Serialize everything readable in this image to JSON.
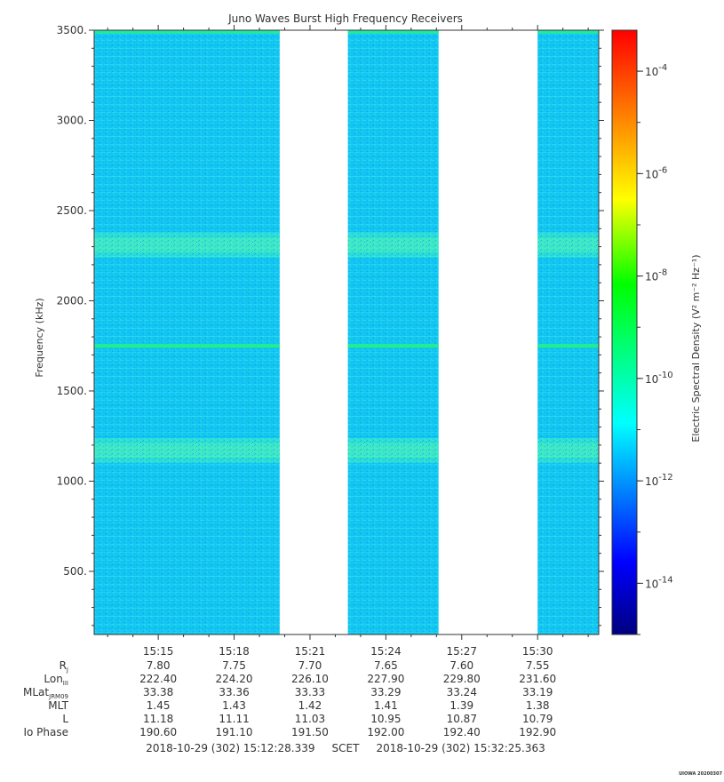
{
  "chart_data": {
    "type": "heatmap",
    "title": "Juno Waves Burst High Frequency Receivers",
    "ylabel": "Frequency (kHz)",
    "colorbar_label": "Electric Spectral Density (V² m⁻² Hz⁻¹)",
    "ylim": [
      150,
      3500
    ],
    "yticks": [
      "500.",
      "1000.",
      "1500.",
      "2000.",
      "2500.",
      "3000.",
      "3500."
    ],
    "ytick_values": [
      500,
      1000,
      1500,
      2000,
      2500,
      3000,
      3500
    ],
    "xlim": [
      "15:12:28",
      "15:32:25"
    ],
    "xticks": [
      "15:15",
      "15:18",
      "15:21",
      "15:24",
      "15:27",
      "15:30"
    ],
    "colorbar_log_range": [
      -15,
      -3.2
    ],
    "colorbar_ticks": [
      {
        "exp": -4,
        "base": "10",
        "sup": "-4"
      },
      {
        "exp": -6,
        "base": "10",
        "sup": "-6"
      },
      {
        "exp": -8,
        "base": "10",
        "sup": "-8"
      },
      {
        "exp": -10,
        "base": "10",
        "sup": "-10"
      },
      {
        "exp": -12,
        "base": "10",
        "sup": "-12"
      },
      {
        "exp": -14,
        "base": "10",
        "sup": "-14"
      }
    ],
    "data_segments": [
      {
        "start": "15:12:28",
        "end": "15:19:48"
      },
      {
        "start": "15:22:30",
        "end": "15:26:05"
      },
      {
        "start": "15:30:00",
        "end": "15:32:25"
      }
    ],
    "background_level": "1e-12",
    "bands": [
      {
        "center_khz": 1750,
        "level": "1e-11",
        "kind": "narrow line"
      },
      {
        "center_khz": 2310,
        "level": "3e-12",
        "kind": "enhanced band"
      },
      {
        "center_khz": 1170,
        "level": "3e-12",
        "kind": "enhanced band"
      }
    ],
    "grid": false,
    "colormap": [
      "#00007f",
      "#0000ff",
      "#00ffff",
      "#00ff00",
      "#ffff00",
      "#ff7f00",
      "#ff0000"
    ]
  },
  "ephemeris": {
    "labels": [
      {
        "main": "R",
        "sub": "J"
      },
      {
        "main": "Lon",
        "sub": "III"
      },
      {
        "main": "MLat",
        "sub": "JRM09"
      },
      {
        "main": "MLT",
        "sub": ""
      },
      {
        "main": "L",
        "sub": ""
      },
      {
        "main": "Io Phase",
        "sub": ""
      }
    ],
    "rows": [
      [
        "7.80",
        "7.75",
        "7.70",
        "7.65",
        "7.60",
        "7.55"
      ],
      [
        "222.40",
        "224.20",
        "226.10",
        "227.90",
        "229.80",
        "231.60"
      ],
      [
        "33.38",
        "33.36",
        "33.33",
        "33.29",
        "33.24",
        "33.19"
      ],
      [
        "1.45",
        "1.43",
        "1.42",
        "1.41",
        "1.39",
        "1.38"
      ],
      [
        "11.18",
        "11.11",
        "11.03",
        "10.95",
        "10.87",
        "10.79"
      ],
      [
        "190.60",
        "191.10",
        "191.50",
        "192.00",
        "192.40",
        "192.90"
      ]
    ]
  },
  "footer": {
    "time_range": "2018-10-29 (302) 15:12:28.339     SCET     2018-10-29 (302) 15:32:25.363",
    "credit": "UIOWA 20200307"
  }
}
